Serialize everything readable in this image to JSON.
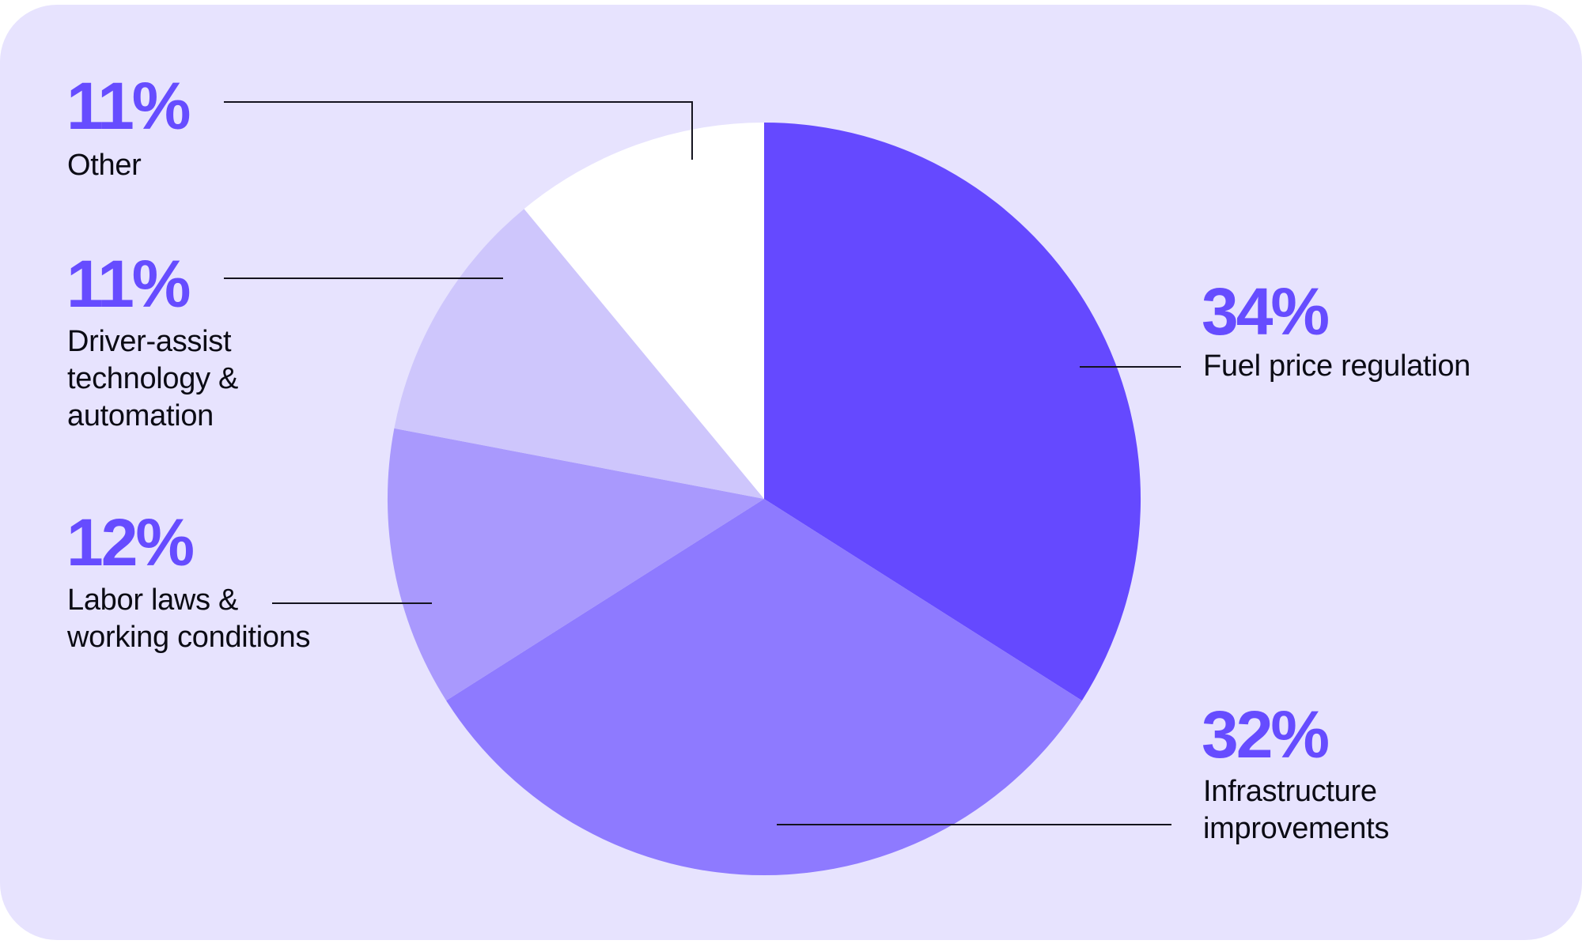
{
  "chart_data": {
    "type": "pie",
    "title": "",
    "start_angle": "12 o'clock, clockwise",
    "slices": [
      {
        "label": "Fuel price regulation",
        "value": 34,
        "display": "34%",
        "color": "#6549ff"
      },
      {
        "label": "Infrastructure improvements",
        "value": 32,
        "display": "32%",
        "color": "#8e7aff"
      },
      {
        "label": "Labor laws & working conditions",
        "value": 12,
        "display": "12%",
        "color": "#a999fd"
      },
      {
        "label": "Driver-assist technology & automation",
        "value": 11,
        "display": "11%",
        "color": "#cec6fc"
      },
      {
        "label": "Other",
        "value": 11,
        "display": "11%",
        "color": "#ffffff"
      }
    ],
    "legend_position": "leader-line callouts around pie",
    "grid": false
  },
  "callouts": {
    "fuel": {
      "pct": "34%",
      "lines": [
        "Fuel price regulation"
      ]
    },
    "infrastructure": {
      "pct": "32%",
      "lines": [
        "Infrastructure",
        "improvements"
      ]
    },
    "labor": {
      "pct": "12%",
      "lines": [
        "Labor laws &",
        "working conditions"
      ]
    },
    "driver": {
      "pct": "11%",
      "lines": [
        "Driver-assist",
        "technology &",
        "automation"
      ]
    },
    "other": {
      "pct": "11%",
      "lines": [
        "Other"
      ]
    }
  },
  "colors": {
    "background": "#e7e3fe",
    "accent": "#664cff",
    "text": "#0b0b14",
    "leader": "#15141f"
  }
}
